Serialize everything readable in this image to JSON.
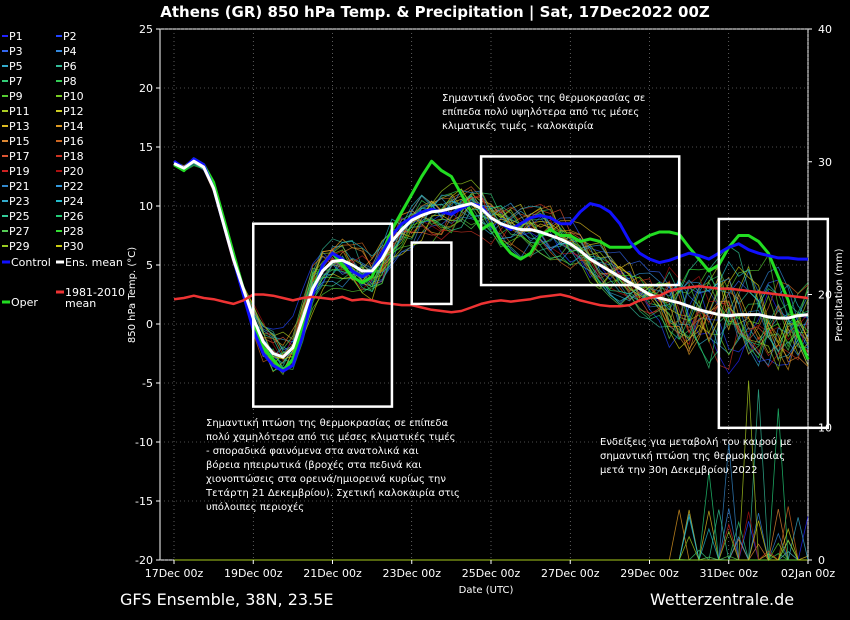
{
  "chart_data": {
    "type": "line",
    "title": "Athens  (GR)  850 hPa Temp. & Precipitation | Sat, 17Dec2022 00Z",
    "xlabel": "Date (UTC)",
    "ylabel": "850 hPa Temp. (°C)",
    "ylabel_right": "Precipitation (mm)",
    "ylim": [
      -20,
      25
    ],
    "ylim_right": [
      0,
      40
    ],
    "yticks": [
      "25",
      "20",
      "15",
      "10",
      "5",
      "0",
      "-5",
      "-10",
      "-15",
      "-20"
    ],
    "yticks_right": [
      "40",
      "30",
      "20",
      "10",
      "0"
    ],
    "xticks": [
      "17Dec 00z",
      "19Dec 00z",
      "21Dec 00z",
      "23Dec 00z",
      "25Dec 00z",
      "27Dec 00z",
      "29Dec 00z",
      "31Dec 00z",
      "02Jan 00z"
    ],
    "grid": true,
    "legend_position": "left",
    "legend": [
      {
        "label": "P1",
        "color": "#2222ff"
      },
      {
        "label": "P2",
        "color": "#2244ff"
      },
      {
        "label": "P3",
        "color": "#3366ee"
      },
      {
        "label": "P4",
        "color": "#3388dd"
      },
      {
        "label": "P5",
        "color": "#33aacc"
      },
      {
        "label": "P6",
        "color": "#33bb99"
      },
      {
        "label": "P7",
        "color": "#33cc77"
      },
      {
        "label": "P8",
        "color": "#33cc55"
      },
      {
        "label": "P9",
        "color": "#55cc33"
      },
      {
        "label": "P10",
        "color": "#77cc22"
      },
      {
        "label": "P11",
        "color": "#aacc22"
      },
      {
        "label": "P12",
        "color": "#cccc22"
      },
      {
        "label": "P13",
        "color": "#ddbb22"
      },
      {
        "label": "P14",
        "color": "#dd9922"
      },
      {
        "label": "P15",
        "color": "#dd8833"
      },
      {
        "label": "P16",
        "color": "#cc6622"
      },
      {
        "label": "P17",
        "color": "#dd5533"
      },
      {
        "label": "P18",
        "color": "#cc3322"
      },
      {
        "label": "P19",
        "color": "#cc2222"
      },
      {
        "label": "P20",
        "color": "#aa1111"
      },
      {
        "label": "P21",
        "color": "#3388cc"
      },
      {
        "label": "P22",
        "color": "#3399dd"
      },
      {
        "label": "P23",
        "color": "#33aacc"
      },
      {
        "label": "P24",
        "color": "#22bbcc"
      },
      {
        "label": "P25",
        "color": "#33cc99"
      },
      {
        "label": "P26",
        "color": "#22cc77"
      },
      {
        "label": "P27",
        "color": "#55cc55"
      },
      {
        "label": "P28",
        "color": "#33dd33"
      },
      {
        "label": "P29",
        "color": "#99cc22"
      },
      {
        "label": "P30",
        "color": "#cccc11"
      },
      {
        "label": "Control",
        "color": "#1111ff",
        "bold": true
      },
      {
        "label": "Ens. mean",
        "color": "#ffffff",
        "bold": true
      },
      {
        "label": "Oper",
        "color": "#22dd22",
        "bold": true
      },
      {
        "label": "1981-2010\nmean",
        "color": "#ee3333",
        "bold": true
      }
    ],
    "x_hours": [
      0,
      6,
      12,
      18,
      24,
      30,
      36,
      42,
      48,
      54,
      60,
      66,
      72,
      78,
      84,
      90,
      96,
      102,
      108,
      114,
      120,
      126,
      132,
      138,
      144,
      150,
      156,
      162,
      168,
      174,
      180,
      186,
      192,
      198,
      204,
      210,
      216,
      222,
      228,
      234,
      240,
      246,
      252,
      258,
      264,
      270,
      276,
      282,
      288,
      294,
      300,
      306,
      312,
      318,
      324,
      330,
      336,
      342,
      348,
      354,
      360,
      366,
      372,
      378,
      384
    ],
    "series": [
      {
        "name": "Oper",
        "color": "#22dd22",
        "width": 3,
        "values": [
          13.5,
          13,
          14,
          13.5,
          12,
          9,
          6,
          3,
          0,
          -2,
          -3,
          -4,
          -3,
          0,
          3,
          5,
          6,
          5,
          4,
          3.5,
          4,
          6,
          8,
          9.5,
          11,
          12.5,
          13.8,
          13,
          12.5,
          11,
          9.5,
          8,
          8.5,
          7,
          6,
          5.5,
          6,
          7.5,
          8,
          7.5,
          7.5,
          7,
          7.2,
          7,
          6.5,
          6.5,
          6.5,
          7,
          7.5,
          7.8,
          7.8,
          7.6,
          6.5,
          5.5,
          4.5,
          5,
          6.5,
          7.5,
          7.5,
          7,
          6,
          4,
          2,
          -1,
          -3
        ]
      },
      {
        "name": "Control",
        "color": "#1111ff",
        "width": 3,
        "values": [
          13.8,
          13.2,
          14,
          13.5,
          11.5,
          8.5,
          5.5,
          2.5,
          -0.5,
          -2.5,
          -3.5,
          -4,
          -3.5,
          -1,
          2.5,
          5,
          6,
          5.5,
          4.5,
          4,
          4.5,
          6,
          7.5,
          8.5,
          9,
          9.5,
          9.7,
          9.5,
          9.3,
          9.8,
          10.2,
          10,
          9,
          8.5,
          8,
          8.5,
          9,
          9.2,
          9,
          8.5,
          8.5,
          9.5,
          10.2,
          10,
          9.5,
          8.5,
          7,
          6,
          5.5,
          5.2,
          5.4,
          5.7,
          6,
          5.8,
          5.5,
          6,
          6.5,
          6.8,
          6.3,
          6,
          5.8,
          5.6,
          5.6,
          5.5,
          5.5
        ]
      },
      {
        "name": "Ens. mean",
        "color": "#ffffff",
        "width": 3,
        "values": [
          13.6,
          13.2,
          13.8,
          13.3,
          11.5,
          8.5,
          5.5,
          3,
          0.5,
          -1.5,
          -2.5,
          -2.8,
          -2,
          0.5,
          3,
          4.5,
          5.3,
          5.4,
          5,
          4.5,
          4.5,
          5.5,
          7,
          8,
          8.8,
          9.2,
          9.5,
          9.6,
          9.8,
          10,
          10.2,
          9.8,
          9,
          8.5,
          8.2,
          8,
          8,
          7.8,
          7.5,
          7.2,
          6.8,
          6.2,
          5.5,
          5,
          4.5,
          4,
          3.5,
          3,
          2.5,
          2.2,
          2,
          1.8,
          1.5,
          1.2,
          1,
          0.8,
          0.7,
          0.8,
          0.8,
          0.8,
          0.6,
          0.5,
          0.5,
          0.7,
          0.8
        ]
      },
      {
        "name": "1981-2010\nmean",
        "color": "#ee3333",
        "width": 2.5,
        "values": [
          2.1,
          2.2,
          2.4,
          2.2,
          2.1,
          1.9,
          1.7,
          2,
          2.5,
          2.5,
          2.4,
          2.2,
          2,
          2.2,
          2.3,
          2.2,
          2.1,
          2.3,
          2,
          2.1,
          2,
          1.8,
          1.7,
          1.6,
          1.6,
          1.4,
          1.2,
          1.1,
          1,
          1.1,
          1.4,
          1.7,
          1.9,
          2,
          1.9,
          2,
          2.1,
          2.3,
          2.4,
          2.5,
          2.3,
          2,
          1.8,
          1.6,
          1.5,
          1.5,
          1.6,
          2,
          2.2,
          2.4,
          2.8,
          3,
          3.1,
          3.2,
          3.1,
          3,
          3,
          2.9,
          2.8,
          2.7,
          2.6,
          2.5,
          2.4,
          2.3,
          2.2
        ]
      }
    ],
    "annotation_boxes": [
      {
        "x": [
          48,
          132
        ],
        "y": [
          -7,
          8.5
        ]
      },
      {
        "x": [
          144,
          168
        ],
        "y": [
          1.7,
          6.9
        ]
      },
      {
        "x": [
          186,
          306
        ],
        "y": [
          3.3,
          14.2
        ]
      },
      {
        "x": [
          330,
          396
        ],
        "y": [
          -8.8,
          8.9
        ]
      }
    ],
    "annotations": [
      {
        "lines": [
          "Σημαντική άνοδος της θερμοκρασίας σε",
          "επίπεδα πολύ υψηλότερα από τις μέσες",
          "κλιματικές τιμές - καλοκαιρία"
        ]
      },
      {
        "lines": [
          "Σημαντική πτώση της θερμοκρασίας σε επίπεδα",
          "πολύ χαμηλότερα από τις μέσες κλιματικές τιμές",
          "- σποραδικά φαινόμενα στα ανατολικά και",
          "βόρεια ηπειρωτικά (βροχές στα πεδινά και",
          "χιονοπτώσεις στα ορεινά/ημιορεινά κυρίως την",
          "Τετάρτη 21 Δεκεμβρίου). Σχετική καλοκαιρία στις",
          "υπόλοιπες περιοχές"
        ]
      },
      {
        "lines": [
          "Ενδείξεις για μεταβολή του καιρού με",
          "σημαντική πτώση της θερμοκρασίας",
          "μετά την 30η Δεκεμβρίου 2022"
        ]
      }
    ]
  },
  "footer": {
    "left": "GFS Ensemble, 38N, 23.5E",
    "right": "Wetterzentrale.de"
  }
}
